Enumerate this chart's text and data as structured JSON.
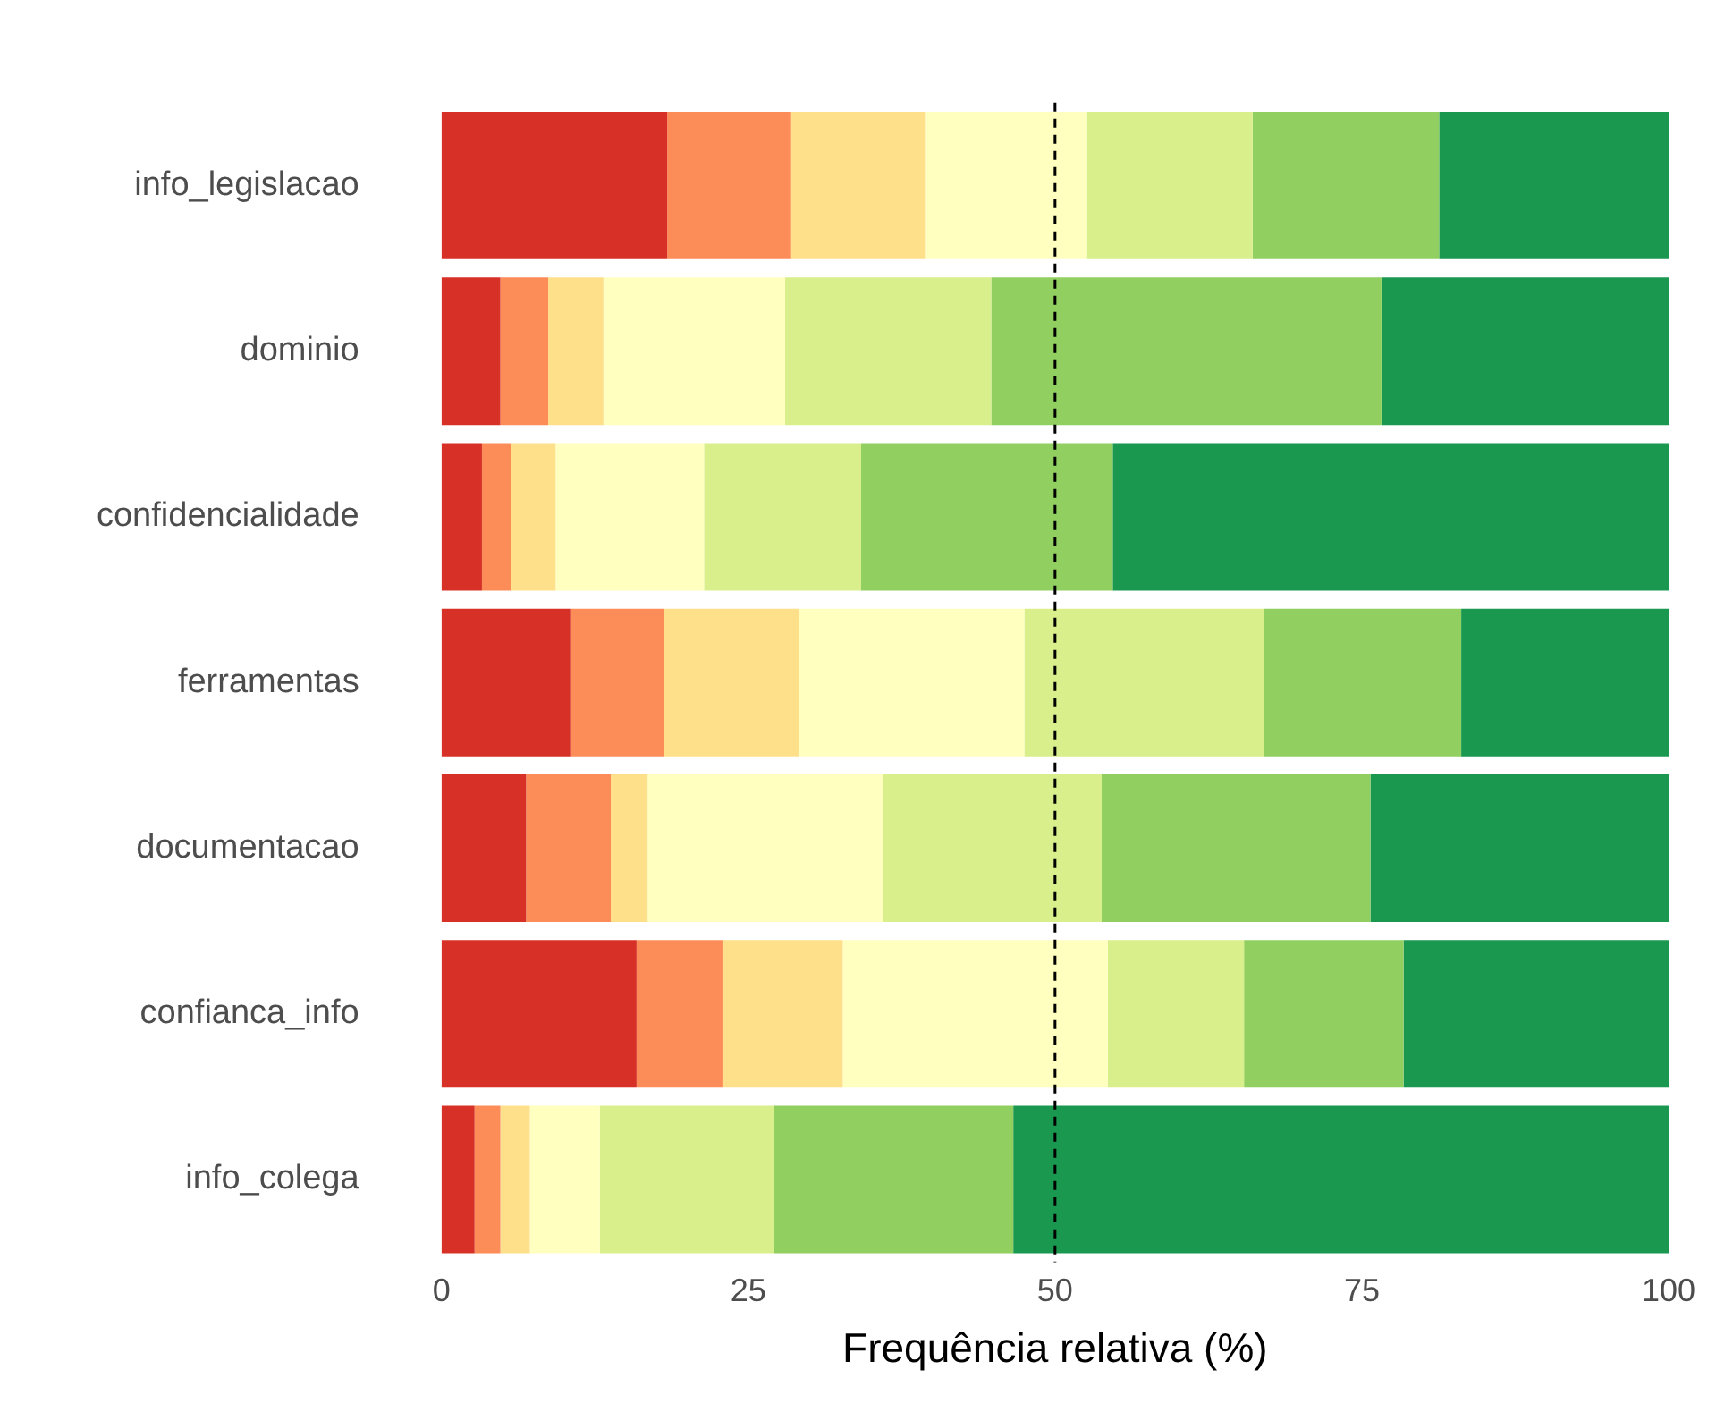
{
  "chart_data": {
    "type": "bar",
    "orientation": "horizontal",
    "stacked": true,
    "xlabel": "Frequência relativa (%)",
    "categories": [
      "info_legislacao",
      "dominio",
      "confidencialidade",
      "ferramentas",
      "documentacao",
      "confianca_info",
      "info_colega"
    ],
    "series": [
      {
        "color": "#d73027",
        "values": [
          18.4,
          4.8,
          3.3,
          10.5,
          6.9,
          15.9,
          2.7
        ]
      },
      {
        "color": "#fc8d59",
        "values": [
          10.1,
          3.9,
          2.4,
          7.6,
          6.9,
          7.0,
          2.1
        ]
      },
      {
        "color": "#fee08b",
        "values": [
          10.9,
          4.5,
          3.6,
          11.0,
          3.0,
          9.8,
          2.4
        ]
      },
      {
        "color": "#ffffbf",
        "values": [
          13.2,
          14.8,
          12.1,
          18.4,
          19.2,
          21.6,
          5.7
        ]
      },
      {
        "color": "#d9ef8b",
        "values": [
          13.5,
          16.8,
          12.8,
          19.5,
          17.8,
          11.1,
          14.2
        ]
      },
      {
        "color": "#91cf60",
        "values": [
          15.2,
          31.8,
          20.5,
          16.1,
          21.9,
          13.0,
          19.5
        ]
      },
      {
        "color": "#1a9850",
        "values": [
          18.7,
          23.4,
          45.3,
          16.9,
          24.3,
          21.6,
          53.4
        ]
      }
    ],
    "xlim": [
      0,
      100
    ],
    "xticks": [
      0,
      25,
      50,
      75,
      100
    ],
    "ref_lines": [
      {
        "axis": "x",
        "value": 50,
        "line_style": "dashed",
        "color": "#000000"
      }
    ],
    "grid": false,
    "legend": false
  }
}
